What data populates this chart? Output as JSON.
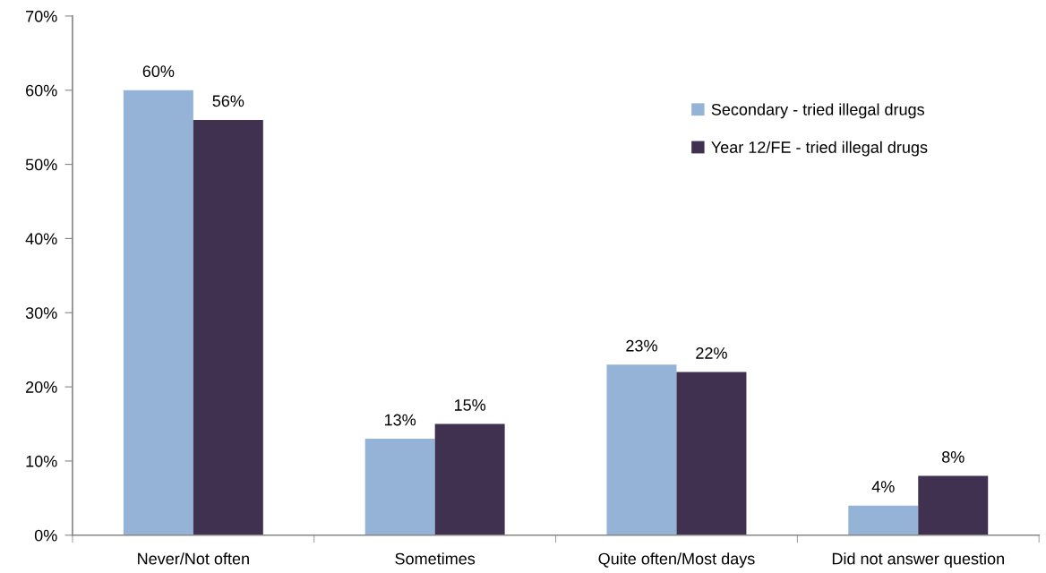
{
  "chart_data": {
    "type": "bar",
    "categories": [
      "Never/Not often",
      "Sometimes",
      "Quite often/Most days",
      "Did not answer question"
    ],
    "series": [
      {
        "name": "Secondary - tried illegal drugs",
        "color": "#95b3d7",
        "values": [
          60,
          13,
          23,
          4
        ],
        "value_labels": [
          "60%",
          "13%",
          "23%",
          "4%"
        ]
      },
      {
        "name": "Year 12/FE - tried illegal drugs",
        "color": "#403151",
        "values": [
          56,
          15,
          22,
          8
        ],
        "value_labels": [
          "56%",
          "15%",
          "22%",
          "8%"
        ]
      }
    ],
    "ylim": [
      0,
      70
    ],
    "yticks": [
      {
        "value": 0,
        "label": "0%"
      },
      {
        "value": 10,
        "label": "10%"
      },
      {
        "value": 20,
        "label": "20%"
      },
      {
        "value": 30,
        "label": "30%"
      },
      {
        "value": 40,
        "label": "40%"
      },
      {
        "value": 50,
        "label": "50%"
      },
      {
        "value": 60,
        "label": "60%"
      },
      {
        "value": 70,
        "label": "70%"
      }
    ],
    "grid": false,
    "legend": "top right"
  }
}
